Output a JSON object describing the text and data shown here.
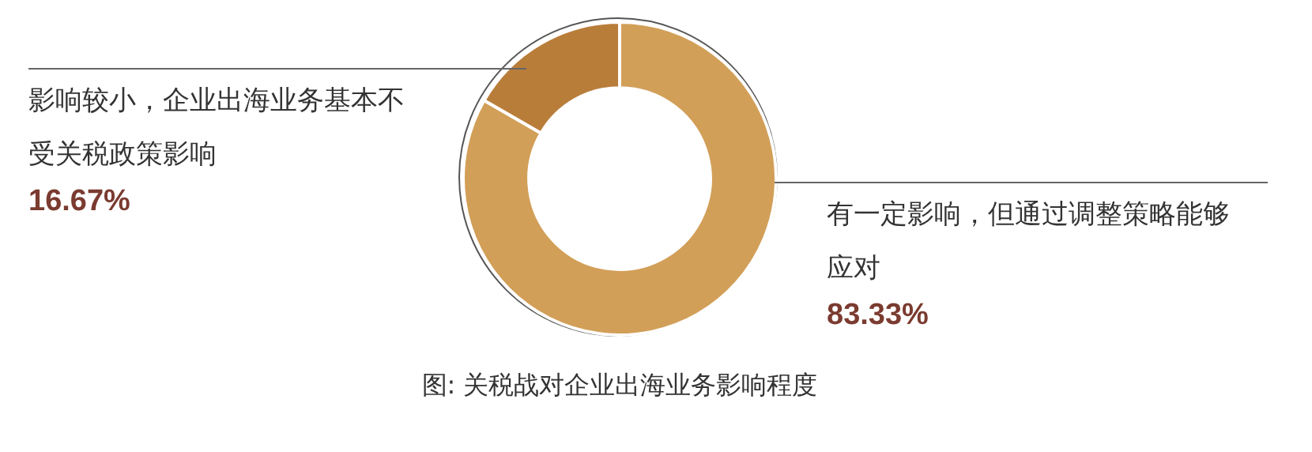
{
  "chart_data": {
    "type": "donut",
    "title": "图: 关税战对企业出海业务影响程度",
    "categories": [
      "有一定影响，但通过调整策略能够应对",
      "影响较小，企业出海业务基本不受关税政策影响"
    ],
    "values": [
      83.33,
      16.67
    ],
    "value_labels": [
      "83.33%",
      "16.67%"
    ],
    "colors": [
      "#d29f58",
      "#b97d3a"
    ]
  }
}
